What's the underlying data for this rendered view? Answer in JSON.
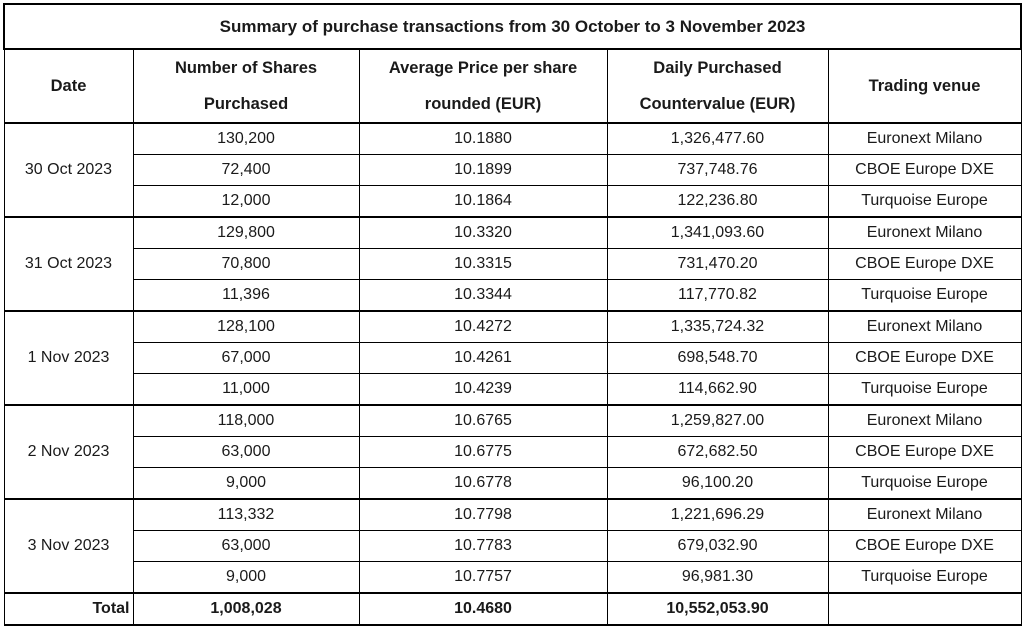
{
  "title": "Summary of purchase transactions from 30 October to 3 November 2023",
  "headers": {
    "date": "Date",
    "shares": "Number of Shares Purchased",
    "avg_price": "Average Price per share rounded (EUR)",
    "countervalue": "Daily  Purchased Countervalue (EUR)",
    "venue": "Trading venue"
  },
  "groups": [
    {
      "date": "30 Oct 2023",
      "rows": [
        {
          "shares": "130,200",
          "avg_price": "10.1880",
          "countervalue": "1,326,477.60",
          "venue": "Euronext Milano"
        },
        {
          "shares": "72,400",
          "avg_price": "10.1899",
          "countervalue": "737,748.76",
          "venue": "CBOE Europe DXE"
        },
        {
          "shares": "12,000",
          "avg_price": "10.1864",
          "countervalue": "122,236.80",
          "venue": "Turquoise Europe"
        }
      ]
    },
    {
      "date": "31 Oct 2023",
      "rows": [
        {
          "shares": "129,800",
          "avg_price": "10.3320",
          "countervalue": "1,341,093.60",
          "venue": "Euronext Milano"
        },
        {
          "shares": "70,800",
          "avg_price": "10.3315",
          "countervalue": "731,470.20",
          "venue": "CBOE Europe DXE"
        },
        {
          "shares": "11,396",
          "avg_price": "10.3344",
          "countervalue": "117,770.82",
          "venue": "Turquoise Europe"
        }
      ]
    },
    {
      "date": "1 Nov 2023",
      "rows": [
        {
          "shares": "128,100",
          "avg_price": "10.4272",
          "countervalue": "1,335,724.32",
          "venue": "Euronext Milano"
        },
        {
          "shares": "67,000",
          "avg_price": "10.4261",
          "countervalue": "698,548.70",
          "venue": "CBOE Europe DXE"
        },
        {
          "shares": "11,000",
          "avg_price": "10.4239",
          "countervalue": "114,662.90",
          "venue": "Turquoise Europe"
        }
      ]
    },
    {
      "date": "2 Nov 2023",
      "rows": [
        {
          "shares": "118,000",
          "avg_price": "10.6765",
          "countervalue": "1,259,827.00",
          "venue": "Euronext Milano"
        },
        {
          "shares": "63,000",
          "avg_price": "10.6775",
          "countervalue": "672,682.50",
          "venue": "CBOE Europe DXE"
        },
        {
          "shares": "9,000",
          "avg_price": "10.6778",
          "countervalue": "96,100.20",
          "venue": "Turquoise Europe"
        }
      ]
    },
    {
      "date": "3 Nov 2023",
      "rows": [
        {
          "shares": "113,332",
          "avg_price": "10.7798",
          "countervalue": "1,221,696.29",
          "venue": "Euronext Milano"
        },
        {
          "shares": "63,000",
          "avg_price": "10.7783",
          "countervalue": "679,032.90",
          "venue": "CBOE Europe DXE"
        },
        {
          "shares": "9,000",
          "avg_price": "10.7757",
          "countervalue": "96,981.30",
          "venue": "Turquoise Europe"
        }
      ]
    }
  ],
  "total": {
    "label": "Total",
    "shares": "1,008,028",
    "avg_price": "10.4680",
    "countervalue": "10,552,053.90",
    "venue": ""
  }
}
